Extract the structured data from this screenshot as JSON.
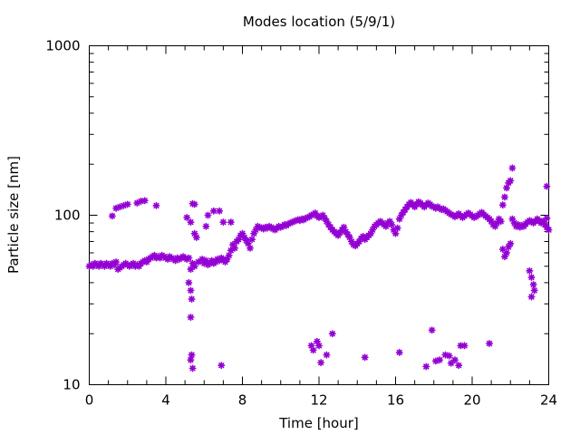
{
  "chart_data": {
    "type": "scatter",
    "title": "Modes location (5/9/1)",
    "xlabel": "Time [hour]",
    "ylabel": "Particle size [nm]",
    "xlim": [
      0,
      24
    ],
    "ylim": [
      10,
      1000
    ],
    "yscale": "log",
    "x_ticks": [
      0,
      4,
      8,
      12,
      16,
      20,
      24
    ],
    "x_tick_labels": [
      "0",
      "4",
      "8",
      "12",
      "16",
      "20",
      "24"
    ],
    "y_ticks": [
      10,
      100,
      1000
    ],
    "y_tick_labels": [
      "10",
      "100",
      "1000"
    ],
    "grid": false,
    "legend": "none",
    "marker_color": "#9400d3",
    "points": [
      [
        0.0,
        50
      ],
      [
        0.1,
        51
      ],
      [
        0.2,
        50
      ],
      [
        0.3,
        52
      ],
      [
        0.4,
        51
      ],
      [
        0.5,
        50
      ],
      [
        0.6,
        52
      ],
      [
        0.7,
        51
      ],
      [
        0.8,
        50
      ],
      [
        0.9,
        52
      ],
      [
        1.0,
        51
      ],
      [
        1.1,
        50
      ],
      [
        1.2,
        52
      ],
      [
        1.3,
        51
      ],
      [
        1.4,
        53
      ],
      [
        1.5,
        48
      ],
      [
        1.6,
        49
      ],
      [
        1.7,
        50
      ],
      [
        1.8,
        51
      ],
      [
        1.9,
        52
      ],
      [
        2.0,
        51
      ],
      [
        2.1,
        50
      ],
      [
        2.2,
        51
      ],
      [
        2.3,
        52
      ],
      [
        2.4,
        50
      ],
      [
        2.5,
        51
      ],
      [
        2.6,
        50
      ],
      [
        2.7,
        52
      ],
      [
        2.8,
        53
      ],
      [
        2.9,
        54
      ],
      [
        3.0,
        53
      ],
      [
        3.1,
        55
      ],
      [
        3.2,
        56
      ],
      [
        3.3,
        57
      ],
      [
        3.4,
        58
      ],
      [
        3.5,
        56
      ],
      [
        3.6,
        57
      ],
      [
        3.7,
        56
      ],
      [
        3.8,
        58
      ],
      [
        3.9,
        57
      ],
      [
        4.0,
        56
      ],
      [
        4.1,
        55
      ],
      [
        4.2,
        57
      ],
      [
        4.3,
        56
      ],
      [
        4.4,
        55
      ],
      [
        4.5,
        54
      ],
      [
        4.6,
        56
      ],
      [
        4.7,
        55
      ],
      [
        4.8,
        56
      ],
      [
        4.9,
        57
      ],
      [
        5.0,
        56
      ],
      [
        5.1,
        55
      ],
      [
        5.2,
        56
      ],
      [
        5.3,
        48
      ],
      [
        5.4,
        52
      ],
      [
        5.5,
        50
      ],
      [
        5.7,
        53
      ],
      [
        5.9,
        55
      ],
      [
        6.0,
        52
      ],
      [
        6.1,
        54
      ],
      [
        6.2,
        51
      ],
      [
        6.3,
        52
      ],
      [
        6.4,
        54
      ],
      [
        6.5,
        52
      ],
      [
        6.6,
        53
      ],
      [
        6.7,
        55
      ],
      [
        6.8,
        54
      ],
      [
        6.9,
        56
      ],
      [
        7.0,
        55
      ],
      [
        7.1,
        53
      ],
      [
        7.2,
        55
      ],
      [
        7.3,
        58
      ],
      [
        7.4,
        62
      ],
      [
        7.5,
        67
      ],
      [
        7.6,
        64
      ],
      [
        7.7,
        70
      ],
      [
        7.8,
        72
      ],
      [
        7.9,
        76
      ],
      [
        8.0,
        78
      ],
      [
        8.1,
        74
      ],
      [
        8.2,
        71
      ],
      [
        8.3,
        68
      ],
      [
        8.4,
        64
      ],
      [
        8.5,
        72
      ],
      [
        8.6,
        78
      ],
      [
        8.7,
        82
      ],
      [
        8.8,
        86
      ],
      [
        8.9,
        85
      ],
      [
        9.0,
        84
      ],
      [
        9.1,
        83
      ],
      [
        9.2,
        85
      ],
      [
        9.3,
        84
      ],
      [
        9.4,
        86
      ],
      [
        9.5,
        85
      ],
      [
        9.6,
        83
      ],
      [
        9.7,
        82
      ],
      [
        9.8,
        84
      ],
      [
        9.9,
        86
      ],
      [
        10.0,
        85
      ],
      [
        10.1,
        86
      ],
      [
        10.2,
        88
      ],
      [
        10.3,
        87
      ],
      [
        10.4,
        89
      ],
      [
        10.5,
        90
      ],
      [
        10.6,
        91
      ],
      [
        10.7,
        92
      ],
      [
        10.8,
        93
      ],
      [
        10.9,
        94
      ],
      [
        11.0,
        93
      ],
      [
        11.1,
        95
      ],
      [
        11.2,
        94
      ],
      [
        11.3,
        96
      ],
      [
        11.4,
        97
      ],
      [
        11.5,
        98
      ],
      [
        11.6,
        100
      ],
      [
        11.7,
        101
      ],
      [
        11.8,
        103
      ],
      [
        11.9,
        99
      ],
      [
        12.0,
        97
      ],
      [
        12.1,
        98
      ],
      [
        12.2,
        100
      ],
      [
        12.3,
        96
      ],
      [
        12.4,
        92
      ],
      [
        12.5,
        88
      ],
      [
        12.6,
        85
      ],
      [
        12.7,
        82
      ],
      [
        12.8,
        80
      ],
      [
        12.9,
        78
      ],
      [
        13.0,
        76
      ],
      [
        13.1,
        79
      ],
      [
        13.2,
        82
      ],
      [
        13.3,
        85
      ],
      [
        13.4,
        80
      ],
      [
        13.5,
        77
      ],
      [
        13.6,
        74
      ],
      [
        13.7,
        70
      ],
      [
        13.8,
        67
      ],
      [
        13.9,
        66
      ],
      [
        14.0,
        68
      ],
      [
        14.1,
        70
      ],
      [
        14.2,
        73
      ],
      [
        14.3,
        75
      ],
      [
        14.4,
        72
      ],
      [
        14.5,
        74
      ],
      [
        14.6,
        76
      ],
      [
        14.7,
        78
      ],
      [
        14.8,
        82
      ],
      [
        14.9,
        86
      ],
      [
        15.0,
        88
      ],
      [
        15.1,
        90
      ],
      [
        15.2,
        92
      ],
      [
        15.3,
        90
      ],
      [
        15.4,
        88
      ],
      [
        15.5,
        86
      ],
      [
        15.6,
        90
      ],
      [
        15.7,
        92
      ],
      [
        15.8,
        88
      ],
      [
        15.9,
        82
      ],
      [
        16.0,
        78
      ],
      [
        16.1,
        84
      ],
      [
        16.2,
        95
      ],
      [
        16.3,
        100
      ],
      [
        16.4,
        104
      ],
      [
        16.5,
        108
      ],
      [
        16.6,
        112
      ],
      [
        16.7,
        116
      ],
      [
        16.8,
        119
      ],
      [
        16.9,
        115
      ],
      [
        17.0,
        112
      ],
      [
        17.1,
        116
      ],
      [
        17.2,
        120
      ],
      [
        17.3,
        118
      ],
      [
        17.4,
        115
      ],
      [
        17.5,
        112
      ],
      [
        17.6,
        115
      ],
      [
        17.7,
        118
      ],
      [
        17.8,
        116
      ],
      [
        17.9,
        113
      ],
      [
        18.0,
        112
      ],
      [
        18.1,
        110
      ],
      [
        18.2,
        112
      ],
      [
        18.3,
        110
      ],
      [
        18.4,
        108
      ],
      [
        18.5,
        109
      ],
      [
        18.6,
        107
      ],
      [
        18.7,
        105
      ],
      [
        18.8,
        103
      ],
      [
        18.9,
        101
      ],
      [
        19.0,
        100
      ],
      [
        19.1,
        98
      ],
      [
        19.2,
        100
      ],
      [
        19.3,
        102
      ],
      [
        19.4,
        99
      ],
      [
        19.5,
        97
      ],
      [
        19.6,
        99
      ],
      [
        19.7,
        101
      ],
      [
        19.8,
        103
      ],
      [
        19.9,
        101
      ],
      [
        20.0,
        99
      ],
      [
        20.1,
        97
      ],
      [
        20.2,
        98
      ],
      [
        20.3,
        100
      ],
      [
        20.4,
        102
      ],
      [
        20.5,
        104
      ],
      [
        20.6,
        101
      ],
      [
        20.7,
        99
      ],
      [
        20.8,
        97
      ],
      [
        20.9,
        95
      ],
      [
        21.0,
        92
      ],
      [
        21.1,
        88
      ],
      [
        21.2,
        86
      ],
      [
        21.3,
        90
      ],
      [
        21.4,
        95
      ],
      [
        21.5,
        92
      ],
      [
        21.6,
        63
      ],
      [
        21.7,
        57
      ],
      [
        21.8,
        60
      ],
      [
        21.9,
        65
      ],
      [
        22.0,
        68
      ],
      [
        22.1,
        95
      ],
      [
        22.2,
        90
      ],
      [
        22.3,
        86
      ],
      [
        22.4,
        88
      ],
      [
        22.5,
        85
      ],
      [
        22.6,
        87
      ],
      [
        22.7,
        86
      ],
      [
        22.8,
        89
      ],
      [
        22.9,
        91
      ],
      [
        23.0,
        93
      ],
      [
        23.1,
        92
      ],
      [
        23.2,
        90
      ],
      [
        23.3,
        92
      ],
      [
        23.4,
        95
      ],
      [
        23.5,
        93
      ],
      [
        23.6,
        90
      ],
      [
        23.7,
        92
      ],
      [
        23.8,
        88
      ],
      [
        23.9,
        85
      ],
      [
        24.0,
        82
      ],
      [
        1.2,
        99
      ],
      [
        1.4,
        110
      ],
      [
        1.6,
        112
      ],
      [
        1.8,
        114
      ],
      [
        2.0,
        116
      ],
      [
        2.5,
        118
      ],
      [
        2.7,
        121
      ],
      [
        2.9,
        122
      ],
      [
        3.5,
        114
      ],
      [
        5.4,
        117
      ],
      [
        5.5,
        116
      ],
      [
        5.1,
        97
      ],
      [
        5.3,
        91
      ],
      [
        5.5,
        78
      ],
      [
        5.6,
        74
      ],
      [
        6.2,
        100
      ],
      [
        6.5,
        106
      ],
      [
        6.8,
        106
      ],
      [
        6.1,
        86
      ],
      [
        7.0,
        91
      ],
      [
        7.4,
        91
      ],
      [
        5.2,
        40
      ],
      [
        5.3,
        36
      ],
      [
        5.35,
        32
      ],
      [
        5.3,
        25
      ],
      [
        5.35,
        15
      ],
      [
        5.3,
        14
      ],
      [
        5.4,
        12.5
      ],
      [
        6.9,
        13
      ],
      [
        11.6,
        17
      ],
      [
        11.7,
        16
      ],
      [
        11.9,
        18
      ],
      [
        12.0,
        17
      ],
      [
        12.1,
        13.5
      ],
      [
        12.4,
        15
      ],
      [
        12.7,
        20
      ],
      [
        14.4,
        14.5
      ],
      [
        16.2,
        15.5
      ],
      [
        17.6,
        12.8
      ],
      [
        17.9,
        21
      ],
      [
        18.1,
        13.8
      ],
      [
        18.3,
        14
      ],
      [
        18.6,
        15
      ],
      [
        18.8,
        14.8
      ],
      [
        18.9,
        13.4
      ],
      [
        19.1,
        14
      ],
      [
        19.3,
        13
      ],
      [
        19.4,
        17
      ],
      [
        19.6,
        17
      ],
      [
        20.9,
        17.5
      ],
      [
        21.8,
        145
      ],
      [
        21.9,
        155
      ],
      [
        22.0,
        160
      ],
      [
        22.1,
        190
      ],
      [
        21.7,
        128
      ],
      [
        21.6,
        115
      ],
      [
        23.0,
        47
      ],
      [
        23.1,
        43
      ],
      [
        23.2,
        39
      ],
      [
        23.25,
        36
      ],
      [
        23.1,
        33
      ],
      [
        23.9,
        148
      ],
      [
        23.9,
        96
      ]
    ]
  }
}
